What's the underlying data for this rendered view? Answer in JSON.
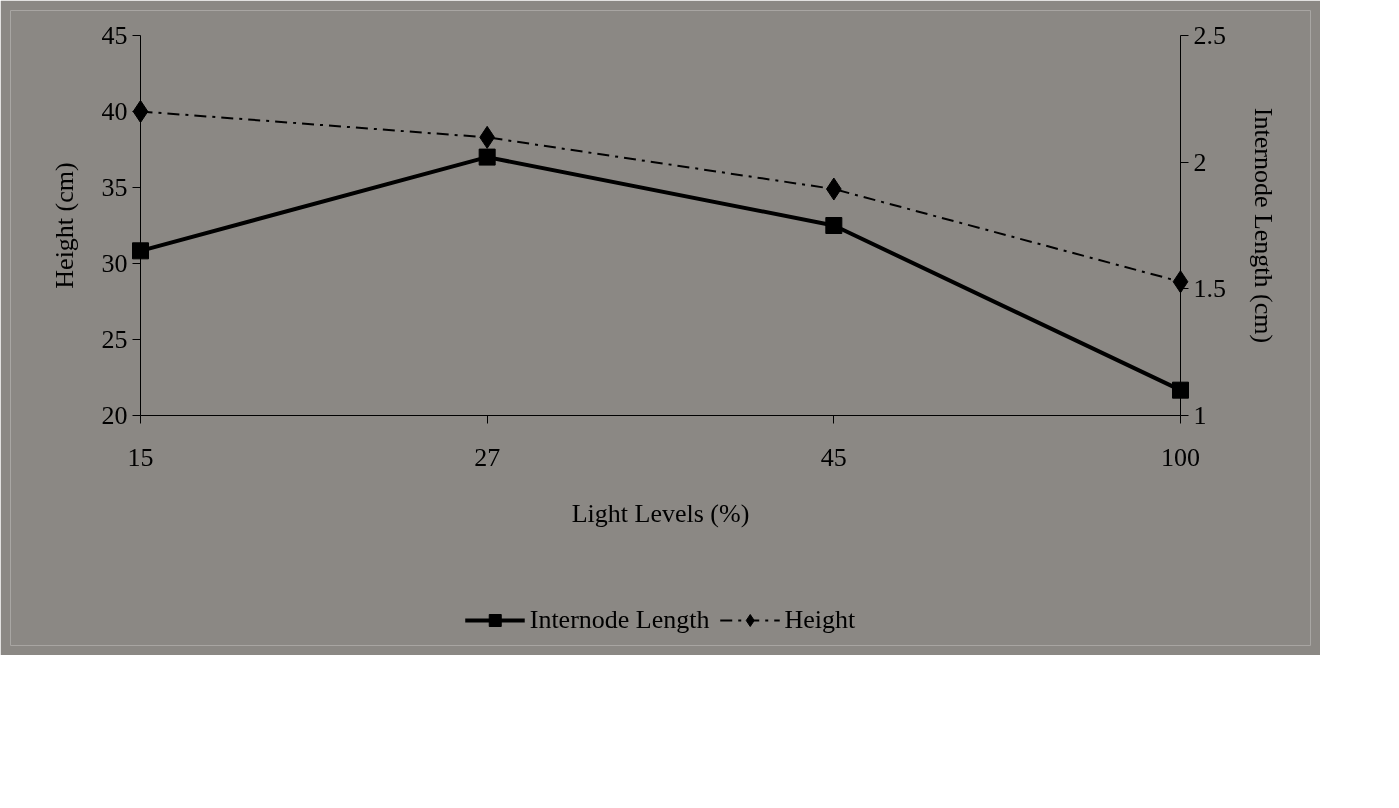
{
  "chart_data": {
    "type": "line",
    "xlabel": "Light Levels (%)",
    "ylabel": "Height (cm)",
    "y2label": "Internode Length (cm)",
    "categories": [
      "15",
      "27",
      "45",
      "100"
    ],
    "ylim": [
      20,
      45
    ],
    "yticks": [
      20,
      25,
      30,
      35,
      40,
      45
    ],
    "y2lim": [
      1,
      2.5
    ],
    "y2ticks": [
      1,
      1.5,
      2,
      2.5
    ],
    "grid": false,
    "legend": "bottom",
    "series": [
      {
        "name": "Internode Length",
        "color": "#000000",
        "axis": "y2",
        "marker": "square",
        "line_style": "solid",
        "values": [
          1.65,
          2.02,
          1.75,
          1.1
        ]
      },
      {
        "name": "Height",
        "color": "#000000",
        "marker": "diamond",
        "line_style": "dashdot",
        "values": [
          40,
          38.3,
          34.9,
          28.8
        ]
      }
    ]
  }
}
